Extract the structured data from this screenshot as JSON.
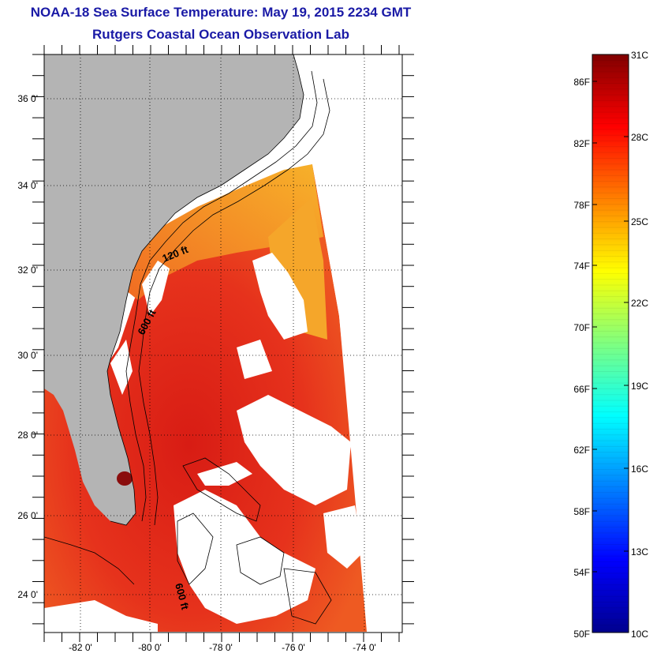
{
  "title": "NOAA-18 Sea Surface Temperature:  May 19, 2015 2234 GMT",
  "subtitle": "Rutgers Coastal Ocean Observation Lab",
  "map": {
    "lat_labels": [
      "36 0'",
      "34 0'",
      "32 0'",
      "30 0'",
      "28 0'",
      "26 0'",
      "24 0'"
    ],
    "lon_labels": [
      "-82 0'",
      "-80 0'",
      "-78 0'",
      "-76 0'",
      "-74 0'"
    ],
    "contour_labels": [
      "120 ft",
      "600 ft",
      "600 ft"
    ],
    "colors": {
      "land": "#b4b4b4",
      "cloud": "#ffffff",
      "warm_sst": "#e8281c",
      "contour": "#000000"
    }
  },
  "colorbar": {
    "f_labels": [
      "86F",
      "82F",
      "78F",
      "74F",
      "70F",
      "66F",
      "62F",
      "58F",
      "54F",
      "50F"
    ],
    "c_labels": [
      "31C",
      "28C",
      "25C",
      "22C",
      "19C",
      "16C",
      "13C",
      "10C"
    ],
    "colormap": "jet"
  }
}
